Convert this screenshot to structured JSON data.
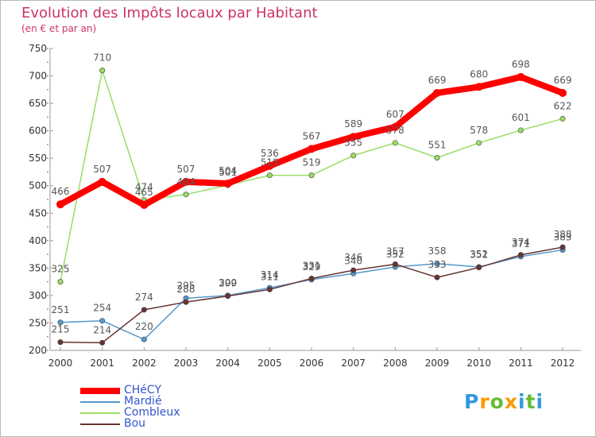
{
  "chart_data": {
    "type": "line",
    "title": "Evolution des Impôts locaux par Habitant",
    "subtitle": "(en € et par an)",
    "x": [
      "2000",
      "2001",
      "2002",
      "2003",
      "2004",
      "2005",
      "2006",
      "2007",
      "2008",
      "2009",
      "2010",
      "2011",
      "2012"
    ],
    "ylim": [
      200,
      750
    ],
    "yticks": [
      200,
      250,
      300,
      350,
      400,
      450,
      500,
      550,
      600,
      650,
      700,
      750
    ],
    "grid": false,
    "legend_position": "bottom-left",
    "series": [
      {
        "name": "CHéCY",
        "color": "#ff0000",
        "values": [
          466,
          507,
          465,
          507,
          504,
          536,
          567,
          589,
          607,
          669,
          680,
          698,
          669
        ]
      },
      {
        "name": "Mardié",
        "color": "#5599cc",
        "values": [
          251,
          254,
          220,
          295,
          300,
          314,
          329,
          340,
          352,
          358,
          352,
          371,
          383
        ]
      },
      {
        "name": "Combleux",
        "color": "#99dd66",
        "values": [
          325,
          710,
          474,
          484,
          501,
          519,
          519,
          555,
          578,
          551,
          578,
          601,
          622
        ]
      },
      {
        "name": "Bou",
        "color": "#663333",
        "values": [
          215,
          214,
          274,
          288,
          299,
          311,
          331,
          346,
          357,
          333,
          351,
          374,
          388
        ]
      }
    ]
  },
  "logo": {
    "letters": [
      "P",
      "r",
      "o",
      "x",
      "i",
      "t",
      "i"
    ],
    "colors": [
      "#3399dd",
      "#ff9900",
      "#66bb33",
      "#ff9900",
      "#3399dd",
      "#66bb33",
      "#3399dd"
    ]
  }
}
